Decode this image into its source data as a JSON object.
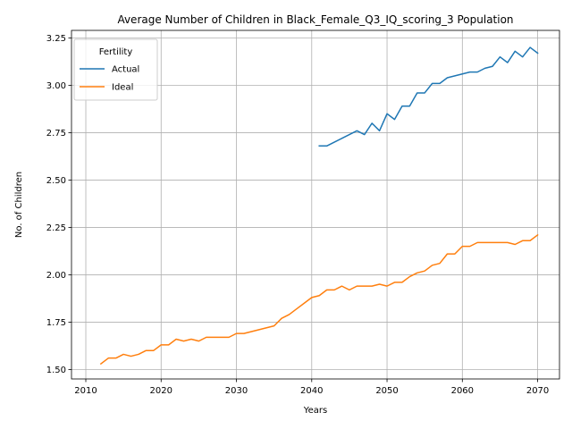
{
  "chart_data": {
    "type": "line",
    "title": "Average Number of Children in Black_Female_Q3_IQ_scoring_3 Population",
    "xlabel": "Years",
    "ylabel": "No. of Children",
    "xlim": [
      2008.1,
      2072.9
    ],
    "ylim": [
      1.45,
      3.29
    ],
    "xticks": [
      2010,
      2020,
      2030,
      2040,
      2050,
      2060,
      2070
    ],
    "yticks": [
      1.5,
      1.75,
      2.0,
      2.25,
      2.5,
      2.75,
      3.0,
      3.25
    ],
    "grid": true,
    "legend": {
      "title": "Fertility",
      "placement": "top-left"
    },
    "series": [
      {
        "name": "Actual",
        "color": "#1f77b4",
        "x": [
          2041,
          2042,
          2043,
          2044,
          2045,
          2046,
          2047,
          2048,
          2049,
          2050,
          2051,
          2052,
          2053,
          2054,
          2055,
          2056,
          2057,
          2058,
          2059,
          2060,
          2061,
          2062,
          2063,
          2064,
          2065,
          2066,
          2067,
          2068,
          2069,
          2070
        ],
        "y": [
          2.68,
          2.68,
          2.7,
          2.72,
          2.74,
          2.76,
          2.74,
          2.8,
          2.76,
          2.85,
          2.82,
          2.89,
          2.89,
          2.96,
          2.96,
          3.01,
          3.01,
          3.04,
          3.05,
          3.06,
          3.07,
          3.07,
          3.09,
          3.1,
          3.15,
          3.12,
          3.18,
          3.15,
          3.2,
          3.17
        ]
      },
      {
        "name": "Ideal",
        "color": "#ff7f0e",
        "x": [
          2012,
          2013,
          2014,
          2015,
          2016,
          2017,
          2018,
          2019,
          2020,
          2021,
          2022,
          2023,
          2024,
          2025,
          2026,
          2027,
          2028,
          2029,
          2030,
          2031,
          2032,
          2033,
          2034,
          2035,
          2036,
          2037,
          2038,
          2039,
          2040,
          2041,
          2042,
          2043,
          2044,
          2045,
          2046,
          2047,
          2048,
          2049,
          2050,
          2051,
          2052,
          2053,
          2054,
          2055,
          2056,
          2057,
          2058,
          2059,
          2060,
          2061,
          2062,
          2063,
          2064,
          2065,
          2066,
          2067,
          2068,
          2069,
          2070
        ],
        "y": [
          1.53,
          1.56,
          1.56,
          1.58,
          1.57,
          1.58,
          1.6,
          1.6,
          1.63,
          1.63,
          1.66,
          1.65,
          1.66,
          1.65,
          1.67,
          1.67,
          1.67,
          1.67,
          1.69,
          1.69,
          1.7,
          1.71,
          1.72,
          1.73,
          1.77,
          1.79,
          1.82,
          1.85,
          1.88,
          1.89,
          1.92,
          1.92,
          1.94,
          1.92,
          1.94,
          1.94,
          1.94,
          1.95,
          1.94,
          1.96,
          1.96,
          1.99,
          2.01,
          2.02,
          2.05,
          2.06,
          2.11,
          2.11,
          2.15,
          2.15,
          2.17,
          2.17,
          2.17,
          2.17,
          2.17,
          2.16,
          2.18,
          2.18,
          2.21
        ]
      }
    ]
  }
}
